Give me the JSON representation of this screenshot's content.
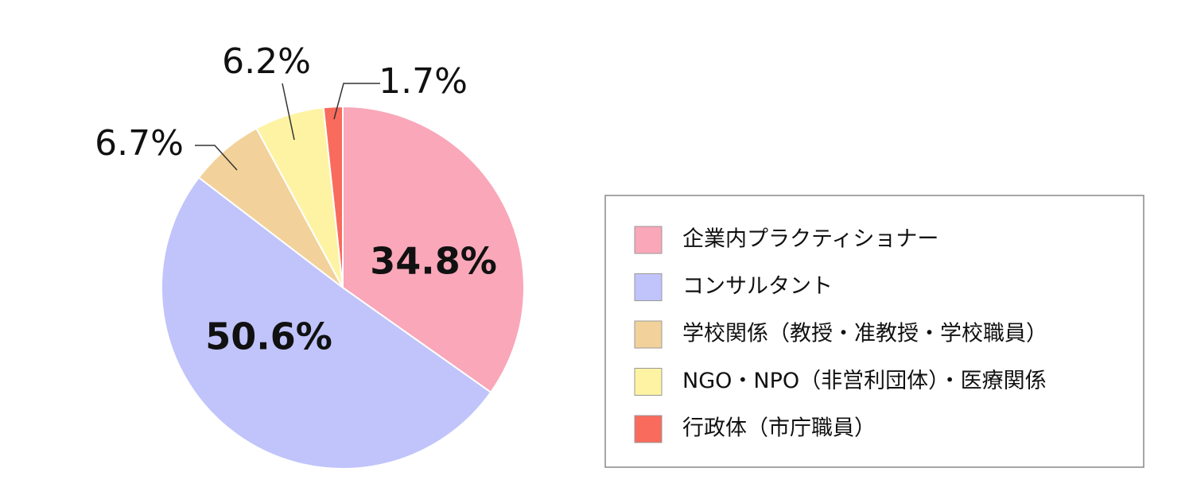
{
  "chart_data": {
    "type": "pie",
    "categories": [
      "企業内プラクティショナー",
      "コンサルタント",
      "学校関係（教授・准教授・学校職員）",
      "NGO・NPO（非営利団体）・医療関係",
      "行政体（市庁職員）"
    ],
    "values": [
      34.8,
      50.6,
      6.7,
      6.2,
      1.7
    ],
    "value_labels": [
      "34.8%",
      "50.6%",
      "6.7%",
      "6.2%",
      "1.7%"
    ],
    "colors": [
      "#f9a7b9",
      "#c0c4fb",
      "#f2d29a",
      "#fdf3a3",
      "#f96b5d"
    ],
    "legend": "right"
  }
}
